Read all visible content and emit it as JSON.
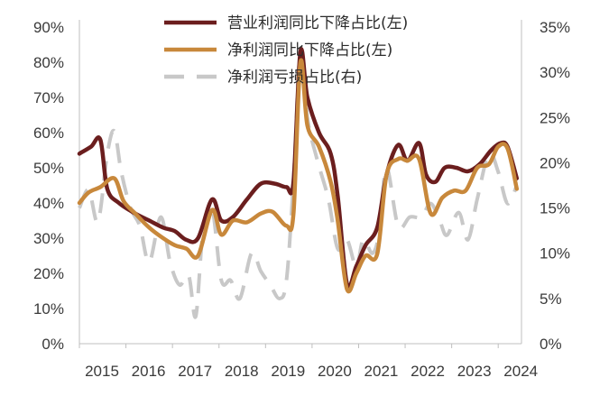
{
  "chart_data": {
    "type": "line",
    "x": [
      "2015",
      "2016",
      "2017",
      "2018",
      "2019",
      "2020",
      "2021",
      "2022",
      "2023",
      "2024"
    ],
    "y_left": {
      "ticks": [
        "0%",
        "10%",
        "20%",
        "30%",
        "40%",
        "50%",
        "60%",
        "70%",
        "80%",
        "90%"
      ],
      "range": [
        0,
        90
      ]
    },
    "y_right": {
      "ticks": [
        "0%",
        "5%",
        "10%",
        "15%",
        "20%",
        "25%",
        "30%",
        "35%"
      ],
      "range": [
        0,
        35
      ]
    },
    "legend_position": "top-center",
    "series": [
      {
        "name": "营业利润同比下降占比(左)",
        "axis": "left",
        "color": "#6b1e1e",
        "style": "solid",
        "points": [
          [
            2015.0,
            54
          ],
          [
            2015.25,
            56
          ],
          [
            2015.45,
            58
          ],
          [
            2015.6,
            44
          ],
          [
            2015.85,
            40
          ],
          [
            2016.2,
            37
          ],
          [
            2016.5,
            35
          ],
          [
            2016.8,
            33
          ],
          [
            2017.05,
            32
          ],
          [
            2017.3,
            29.5
          ],
          [
            2017.55,
            30
          ],
          [
            2017.85,
            41
          ],
          [
            2018.05,
            35
          ],
          [
            2018.3,
            36
          ],
          [
            2018.6,
            41
          ],
          [
            2018.9,
            45.5
          ],
          [
            2019.2,
            45.5
          ],
          [
            2019.45,
            44.5
          ],
          [
            2019.6,
            46
          ],
          [
            2019.75,
            83
          ],
          [
            2019.9,
            70
          ],
          [
            2020.15,
            60
          ],
          [
            2020.4,
            54
          ],
          [
            2020.55,
            42
          ],
          [
            2020.75,
            17
          ],
          [
            2020.95,
            22
          ],
          [
            2021.15,
            28
          ],
          [
            2021.4,
            33
          ],
          [
            2021.6,
            48
          ],
          [
            2021.85,
            56.5
          ],
          [
            2022.05,
            52
          ],
          [
            2022.3,
            57
          ],
          [
            2022.45,
            48
          ],
          [
            2022.65,
            46
          ],
          [
            2022.85,
            50
          ],
          [
            2023.1,
            50
          ],
          [
            2023.35,
            49
          ],
          [
            2023.6,
            51
          ],
          [
            2023.85,
            55
          ],
          [
            2024.05,
            57
          ],
          [
            2024.2,
            56
          ],
          [
            2024.4,
            47
          ]
        ]
      },
      {
        "name": "净利润同比下降占比(左)",
        "axis": "left",
        "color": "#c8883b",
        "style": "solid",
        "points": [
          [
            2015.0,
            40
          ],
          [
            2015.2,
            43
          ],
          [
            2015.45,
            44.5
          ],
          [
            2015.75,
            47
          ],
          [
            2015.95,
            40.5
          ],
          [
            2016.2,
            37
          ],
          [
            2016.5,
            33
          ],
          [
            2016.8,
            30
          ],
          [
            2017.05,
            28
          ],
          [
            2017.3,
            27
          ],
          [
            2017.55,
            25
          ],
          [
            2017.85,
            38
          ],
          [
            2018.05,
            31
          ],
          [
            2018.3,
            35
          ],
          [
            2018.6,
            34.5
          ],
          [
            2018.9,
            37
          ],
          [
            2019.15,
            37.5
          ],
          [
            2019.45,
            33.5
          ],
          [
            2019.6,
            37
          ],
          [
            2019.75,
            80
          ],
          [
            2019.9,
            62
          ],
          [
            2020.15,
            56
          ],
          [
            2020.4,
            46
          ],
          [
            2020.55,
            35
          ],
          [
            2020.75,
            15.5
          ],
          [
            2020.95,
            20
          ],
          [
            2021.15,
            25
          ],
          [
            2021.4,
            25.5
          ],
          [
            2021.6,
            48
          ],
          [
            2021.85,
            52.5
          ],
          [
            2022.05,
            52
          ],
          [
            2022.3,
            52.5
          ],
          [
            2022.55,
            37
          ],
          [
            2022.8,
            41.5
          ],
          [
            2023.05,
            43.5
          ],
          [
            2023.3,
            43.5
          ],
          [
            2023.55,
            50
          ],
          [
            2023.8,
            51
          ],
          [
            2024.0,
            56
          ],
          [
            2024.2,
            55.5
          ],
          [
            2024.4,
            44
          ]
        ]
      },
      {
        "name": "净利润亏损占比(右)",
        "axis": "right",
        "color": "#c8c8c8",
        "style": "dashed",
        "points": [
          [
            2015.0,
            15
          ],
          [
            2015.2,
            17
          ],
          [
            2015.4,
            13.5
          ],
          [
            2015.6,
            21
          ],
          [
            2015.75,
            23.5
          ],
          [
            2015.9,
            19
          ],
          [
            2016.1,
            15
          ],
          [
            2016.3,
            13
          ],
          [
            2016.5,
            9
          ],
          [
            2016.75,
            14
          ],
          [
            2016.95,
            9
          ],
          [
            2017.15,
            6.5
          ],
          [
            2017.35,
            7.5
          ],
          [
            2017.5,
            3
          ],
          [
            2017.65,
            12
          ],
          [
            2017.85,
            15
          ],
          [
            2018.05,
            7
          ],
          [
            2018.25,
            7
          ],
          [
            2018.45,
            5
          ],
          [
            2018.7,
            10
          ],
          [
            2018.9,
            8
          ],
          [
            2019.1,
            6.5
          ],
          [
            2019.3,
            5
          ],
          [
            2019.45,
            7
          ],
          [
            2019.6,
            18
          ],
          [
            2019.75,
            32.5
          ],
          [
            2019.9,
            25
          ],
          [
            2020.1,
            20.5
          ],
          [
            2020.35,
            16
          ],
          [
            2020.55,
            10.5
          ],
          [
            2020.75,
            11.5
          ],
          [
            2020.95,
            8.5
          ],
          [
            2021.1,
            11.5
          ],
          [
            2021.3,
            10
          ],
          [
            2021.45,
            12.5
          ],
          [
            2021.6,
            19.5
          ],
          [
            2021.85,
            13
          ],
          [
            2022.1,
            14
          ],
          [
            2022.35,
            14
          ],
          [
            2022.55,
            15.5
          ],
          [
            2022.75,
            13.5
          ],
          [
            2022.9,
            12
          ],
          [
            2023.15,
            14.5
          ],
          [
            2023.35,
            11.5
          ],
          [
            2023.55,
            16
          ],
          [
            2023.8,
            21
          ],
          [
            2024.0,
            19
          ],
          [
            2024.2,
            15.5
          ],
          [
            2024.4,
            17.5
          ]
        ]
      }
    ]
  }
}
